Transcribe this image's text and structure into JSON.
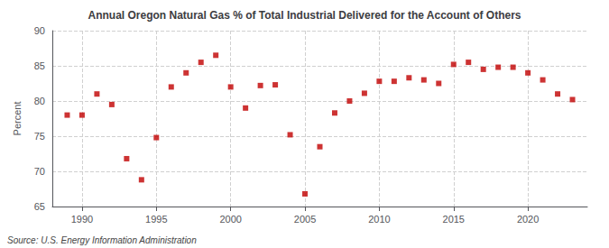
{
  "chart_data": {
    "type": "scatter",
    "title": "Annual Oregon Natural Gas % of Total Industrial Delivered for the Account of Others",
    "ylabel": "Percent",
    "annotations": [
      "Source: U.S. Energy Information Administration"
    ],
    "x": [
      1989,
      1990,
      1991,
      1992,
      1993,
      1994,
      1995,
      1996,
      1997,
      1998,
      1999,
      2000,
      2001,
      2002,
      2003,
      2004,
      2005,
      2006,
      2007,
      2008,
      2009,
      2010,
      2011,
      2012,
      2013,
      2014,
      2015,
      2016,
      2017,
      2018,
      2019,
      2020,
      2021,
      2022,
      2023
    ],
    "values": [
      78.0,
      78.0,
      81.0,
      79.5,
      71.8,
      68.8,
      74.8,
      82.0,
      84.0,
      85.5,
      86.5,
      82.0,
      79.0,
      82.2,
      82.3,
      75.2,
      66.8,
      73.5,
      78.3,
      80.0,
      81.1,
      82.8,
      82.8,
      83.3,
      83.0,
      82.5,
      85.2,
      85.5,
      84.5,
      84.8,
      84.8,
      84.0,
      83.0,
      81.0,
      80.2
    ],
    "color": "#c00000",
    "marker": "square",
    "xlim": [
      1988,
      2024
    ],
    "ylim": [
      65,
      90
    ],
    "xticks": [
      1990,
      1995,
      2000,
      2005,
      2010,
      2015,
      2020
    ],
    "yticks": [
      65,
      70,
      75,
      80,
      85,
      90
    ],
    "grid": true
  }
}
